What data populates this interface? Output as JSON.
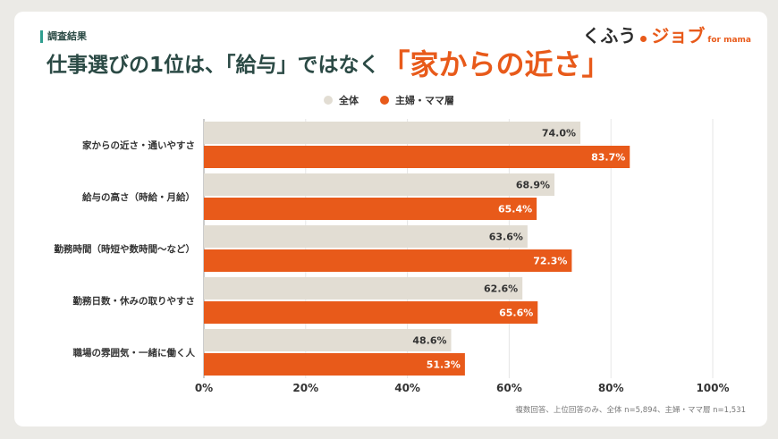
{
  "header": {
    "tag": "調査結果",
    "headline_main": "仕事選びの1位は、「給与」ではなく",
    "headline_accent": "「家からの近さ」"
  },
  "logo": {
    "part1": "くふう",
    "part2": "ジョブ",
    "part3": "for mama"
  },
  "footnote": "複数回答、上位回答のみ、全体 n=5,894、主婦・ママ層 n=1,531",
  "colors": {
    "all": "#e2ddd3",
    "mama": "#e85a1a",
    "accent": "#e85a1a",
    "teal": "#2f9e8f"
  },
  "chart_data": {
    "type": "bar",
    "orientation": "horizontal",
    "categories": [
      "家からの近さ・通いやすさ",
      "給与の高さ（時給・月給）",
      "勤務時間（時短や数時間〜など）",
      "勤務日数・休みの取りやすさ",
      "職場の雰囲気・一緒に働く人"
    ],
    "series": [
      {
        "name": "全体",
        "values": [
          74.0,
          68.9,
          63.6,
          62.6,
          48.6
        ],
        "color": "#e2ddd3"
      },
      {
        "name": "主婦・ママ層",
        "values": [
          83.7,
          65.4,
          72.3,
          65.6,
          51.3
        ],
        "color": "#e85a1a"
      }
    ],
    "xlim": [
      0,
      100
    ],
    "xticks": [
      0,
      20,
      40,
      60,
      80,
      100
    ],
    "tick_suffix": "%",
    "value_suffix": "%",
    "grid": true,
    "legend_position": "top-center"
  }
}
